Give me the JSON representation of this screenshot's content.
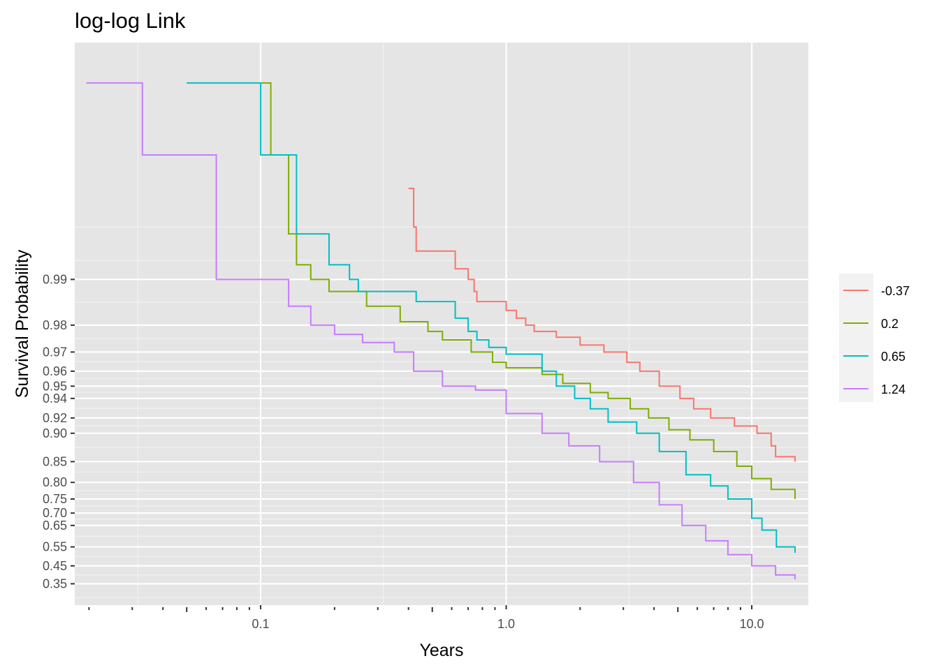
{
  "chart_data": {
    "type": "line",
    "title": "log-log Link",
    "xlabel": "Years",
    "ylabel": "Survival Probability",
    "x_scale": "log10",
    "y_scale": "log(-log(S))",
    "xlim": [
      0.0175,
      17
    ],
    "y_data_min": 0.34,
    "x_ticks": [
      {
        "value": 0.1,
        "label": "0.1"
      },
      {
        "value": 1,
        "label": "1.0"
      },
      {
        "value": 10,
        "label": "10.0"
      }
    ],
    "y_ticks": [
      {
        "value": 0.99,
        "label": "0.99"
      },
      {
        "value": 0.98,
        "label": "0.98"
      },
      {
        "value": 0.97,
        "label": "0.97"
      },
      {
        "value": 0.96,
        "label": "0.96"
      },
      {
        "value": 0.95,
        "label": "0.95"
      },
      {
        "value": 0.94,
        "label": "0.94"
      },
      {
        "value": 0.92,
        "label": "0.92"
      },
      {
        "value": 0.9,
        "label": "0.90"
      },
      {
        "value": 0.85,
        "label": "0.85"
      },
      {
        "value": 0.8,
        "label": "0.80"
      },
      {
        "value": 0.75,
        "label": "0.75"
      },
      {
        "value": 0.7,
        "label": "0.70"
      },
      {
        "value": 0.65,
        "label": "0.65"
      },
      {
        "value": 0.55,
        "label": "0.55"
      },
      {
        "value": 0.45,
        "label": "0.45"
      },
      {
        "value": 0.35,
        "label": "0.35"
      }
    ],
    "grid": true,
    "legend_position": "right",
    "series": [
      {
        "name": "-0.37",
        "color": "#F8766D",
        "points": [
          [
            0.4,
            0.9975
          ],
          [
            0.42,
            0.9955
          ],
          [
            0.43,
            0.9935
          ],
          [
            0.62,
            0.9915
          ],
          [
            0.7,
            0.99
          ],
          [
            0.74,
            0.988
          ],
          [
            0.76,
            0.986
          ],
          [
            1.0,
            0.984
          ],
          [
            1.1,
            0.982
          ],
          [
            1.2,
            0.98
          ],
          [
            1.3,
            0.978
          ],
          [
            1.6,
            0.976
          ],
          [
            2.0,
            0.973
          ],
          [
            2.5,
            0.97
          ],
          [
            3.1,
            0.965
          ],
          [
            3.5,
            0.96
          ],
          [
            4.2,
            0.95
          ],
          [
            5.1,
            0.94
          ],
          [
            5.8,
            0.93
          ],
          [
            6.8,
            0.92
          ],
          [
            8.5,
            0.91
          ],
          [
            10.5,
            0.9
          ],
          [
            12.0,
            0.88
          ],
          [
            12.5,
            0.86
          ],
          [
            15.0,
            0.85
          ]
        ]
      },
      {
        "name": "0.2",
        "color": "#7CAE00",
        "points": [
          [
            0.1,
            0.9995
          ],
          [
            0.11,
            0.9985
          ],
          [
            0.13,
            0.995
          ],
          [
            0.14,
            0.992
          ],
          [
            0.16,
            0.99
          ],
          [
            0.19,
            0.988
          ],
          [
            0.27,
            0.985
          ],
          [
            0.37,
            0.981
          ],
          [
            0.48,
            0.978
          ],
          [
            0.55,
            0.975
          ],
          [
            0.72,
            0.97
          ],
          [
            0.88,
            0.965
          ],
          [
            1.0,
            0.962
          ],
          [
            1.4,
            0.958
          ],
          [
            1.7,
            0.952
          ],
          [
            2.2,
            0.945
          ],
          [
            2.6,
            0.94
          ],
          [
            3.2,
            0.93
          ],
          [
            3.8,
            0.92
          ],
          [
            4.6,
            0.905
          ],
          [
            5.6,
            0.89
          ],
          [
            7.0,
            0.87
          ],
          [
            8.7,
            0.84
          ],
          [
            10.0,
            0.81
          ],
          [
            12.0,
            0.78
          ],
          [
            15.0,
            0.75
          ]
        ]
      },
      {
        "name": "0.65",
        "color": "#00BFC4",
        "points": [
          [
            0.05,
            0.9995
          ],
          [
            0.1,
            0.9985
          ],
          [
            0.14,
            0.995
          ],
          [
            0.19,
            0.992
          ],
          [
            0.23,
            0.99
          ],
          [
            0.25,
            0.988
          ],
          [
            0.43,
            0.986
          ],
          [
            0.62,
            0.982
          ],
          [
            0.7,
            0.978
          ],
          [
            0.76,
            0.975
          ],
          [
            0.85,
            0.972
          ],
          [
            1.0,
            0.969
          ],
          [
            1.4,
            0.96
          ],
          [
            1.6,
            0.95
          ],
          [
            1.9,
            0.94
          ],
          [
            2.2,
            0.93
          ],
          [
            2.6,
            0.915
          ],
          [
            3.4,
            0.9
          ],
          [
            4.2,
            0.87
          ],
          [
            5.4,
            0.82
          ],
          [
            6.8,
            0.79
          ],
          [
            8.0,
            0.75
          ],
          [
            10.0,
            0.68
          ],
          [
            11.0,
            0.63
          ],
          [
            12.6,
            0.55
          ],
          [
            15.0,
            0.52
          ]
        ]
      },
      {
        "name": "1.24",
        "color": "#C77CFF",
        "points": [
          [
            0.0195,
            0.9995
          ],
          [
            0.033,
            0.9985
          ],
          [
            0.066,
            0.99
          ],
          [
            0.13,
            0.985
          ],
          [
            0.16,
            0.98
          ],
          [
            0.2,
            0.977
          ],
          [
            0.26,
            0.974
          ],
          [
            0.35,
            0.97
          ],
          [
            0.42,
            0.96
          ],
          [
            0.55,
            0.95
          ],
          [
            0.75,
            0.947
          ],
          [
            1.0,
            0.925
          ],
          [
            1.4,
            0.9
          ],
          [
            1.8,
            0.88
          ],
          [
            2.4,
            0.85
          ],
          [
            3.3,
            0.8
          ],
          [
            4.2,
            0.73
          ],
          [
            5.2,
            0.65
          ],
          [
            6.5,
            0.58
          ],
          [
            8.0,
            0.51
          ],
          [
            10.0,
            0.45
          ],
          [
            12.5,
            0.4
          ],
          [
            15.0,
            0.375
          ]
        ]
      }
    ]
  }
}
